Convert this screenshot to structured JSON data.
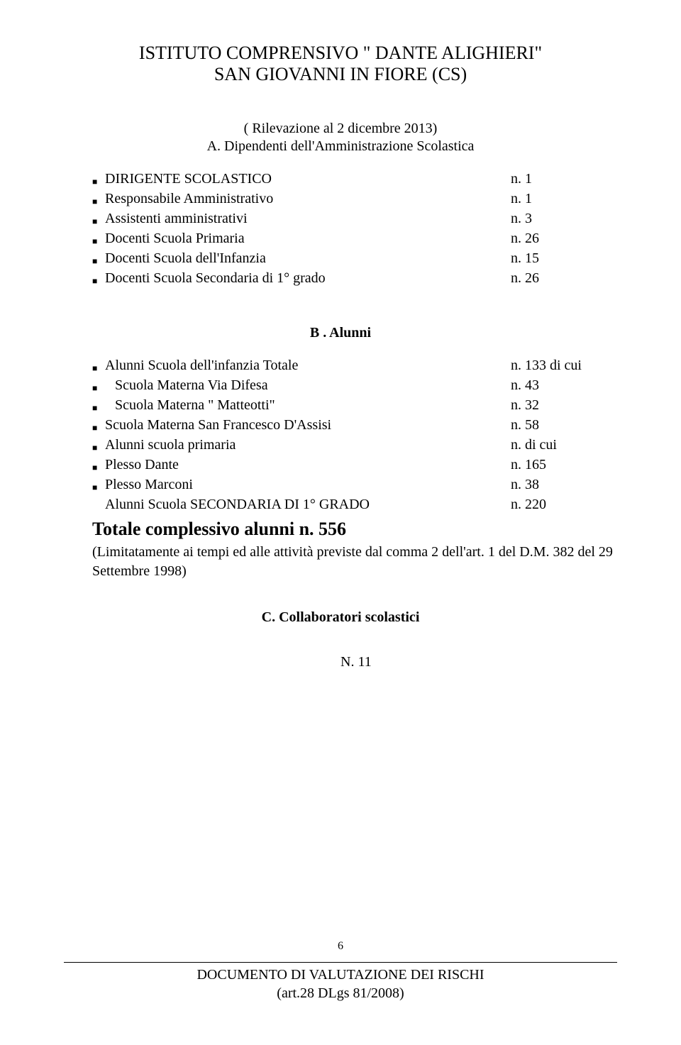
{
  "header": {
    "line1": "ISTITUTO COMPRENSIVO \" DANTE ALIGHIERI\"",
    "line2": "SAN GIOVANNI IN FIORE (CS)"
  },
  "sectionA": {
    "title": "( Rilevazione al 2 dicembre 2013)",
    "subtitle": "A.   Dipendenti  dell'Amministrazione Scolastica",
    "items": [
      {
        "label": "DIRIGENTE SCOLASTICO",
        "value": "n.   1"
      },
      {
        "label": "Responsabile Amministrativo",
        "value": "n.   1"
      },
      {
        "label": "Assistenti amministrativi",
        "value": "n.   3"
      },
      {
        "label": "Docenti Scuola Primaria",
        "value": "n.  26"
      },
      {
        "label": "Docenti Scuola dell'Infanzia",
        "value": "n. 15"
      },
      {
        "label": "Docenti Scuola Secondaria di 1° grado",
        "value": "n. 26"
      }
    ]
  },
  "sectionB": {
    "title": "B .   Alunni",
    "itemsBulleted": [
      {
        "label": "Alunni Scuola  dell'infanzia                            Totale",
        "value": "n. 133   di cui"
      },
      {
        "label": " Scuola Materna Via Difesa",
        "value": "n. 43",
        "indent": true
      },
      {
        "label": " Scuola Materna \" Matteotti\"",
        "value": "n.  32",
        "indent": true
      },
      {
        "label": "Scuola Materna  San Francesco  D'Assisi",
        "value": "n.  58"
      },
      {
        "label": "Alunni  scuola primaria",
        "value": " n. di cui"
      },
      {
        "label": "Plesso Dante",
        "value": " n. 165"
      },
      {
        "label": "Plesso Marconi",
        "value": " n. 38"
      }
    ],
    "nonBulleted": {
      "label": "Alunni Scuola  SECONDARIA DI 1° GRADO",
      "value": "n. 220"
    },
    "totale": "Totale complessivo alunni n.   556",
    "note": "(Limitatamente ai tempi ed alle attività  previste dal comma 2 dell'art. 1 del D.M. 382 del 29 Settembre 1998)"
  },
  "sectionC": {
    "title": "C. Collaboratori scolastici",
    "count": "N. 11"
  },
  "pageNumber": "6",
  "footer": {
    "line1": "DOCUMENTO DI VALUTAZIONE DEI RISCHI",
    "line2": "(art.28 DLgs 81/2008)"
  },
  "bulletGlyph": "■"
}
